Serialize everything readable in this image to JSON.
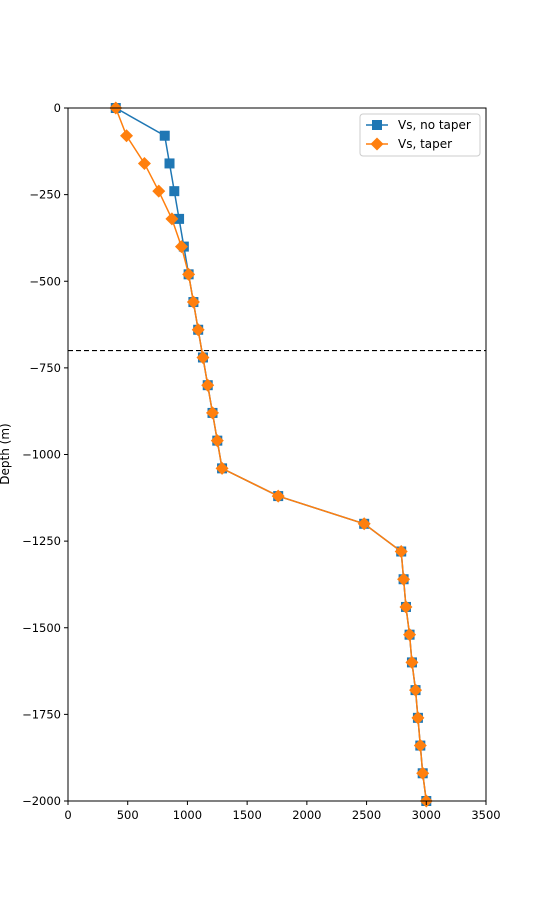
{
  "chart_data": {
    "type": "line",
    "xlabel": "",
    "ylabel": "Depth (m)",
    "xlim": [
      0,
      3500
    ],
    "ylim": [
      -2000,
      0
    ],
    "x_ticks": [
      0,
      500,
      1000,
      1500,
      2000,
      2500,
      3000,
      3500
    ],
    "y_ticks": [
      0,
      -250,
      -500,
      -750,
      -1000,
      -1250,
      -1500,
      -1750,
      -2000
    ],
    "x_tick_labels": [
      "0",
      "500",
      "1000",
      "1500",
      "2000",
      "2500",
      "3000",
      "3500"
    ],
    "y_tick_labels": [
      "0",
      "−250",
      "−500",
      "−750",
      "−1000",
      "−1250",
      "−1500",
      "−1750",
      "−2000"
    ],
    "grid": false,
    "legend_position": "top-right",
    "hline": {
      "y": -700,
      "style": "dashed",
      "color": "#000000"
    },
    "series": [
      {
        "name": "Vs, no taper",
        "color": "#1f77b4",
        "marker": "square",
        "x": [
          400,
          810,
          850,
          890,
          930,
          970,
          1010,
          1050,
          1090,
          1130,
          1170,
          1210,
          1250,
          1290,
          1760,
          2480,
          2790,
          2810,
          2830,
          2860,
          2880,
          2910,
          2930,
          2950,
          2970,
          3000
        ],
        "y": [
          0,
          -80,
          -160,
          -240,
          -320,
          -400,
          -480,
          -560,
          -640,
          -720,
          -800,
          -880,
          -960,
          -1040,
          -1120,
          -1200,
          -1280,
          -1360,
          -1440,
          -1520,
          -1600,
          -1680,
          -1760,
          -1840,
          -1920,
          -2000
        ]
      },
      {
        "name": "Vs, taper",
        "color": "#ff7f0e",
        "marker": "diamond",
        "x": [
          400,
          490,
          640,
          760,
          870,
          950,
          1010,
          1050,
          1090,
          1130,
          1170,
          1210,
          1250,
          1290,
          1760,
          2480,
          2790,
          2810,
          2830,
          2860,
          2880,
          2910,
          2930,
          2950,
          2970,
          3000
        ],
        "y": [
          0,
          -80,
          -160,
          -240,
          -320,
          -400,
          -480,
          -560,
          -640,
          -720,
          -800,
          -880,
          -960,
          -1040,
          -1120,
          -1200,
          -1280,
          -1360,
          -1440,
          -1520,
          -1600,
          -1680,
          -1760,
          -1840,
          -1920,
          -2000
        ]
      }
    ]
  }
}
